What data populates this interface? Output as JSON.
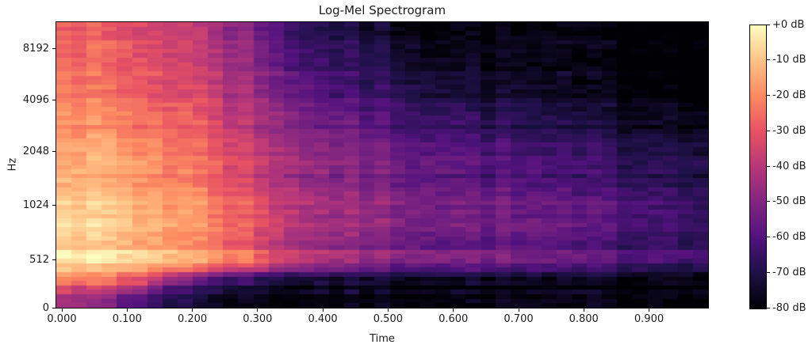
{
  "chart_data": {
    "type": "heatmap",
    "subtype": "log-mel-spectrogram",
    "title": "Log-Mel Spectrogram",
    "xlabel": "Time",
    "ylabel": "Hz",
    "x_tick_labels": [
      "0.000",
      "0.100",
      "0.200",
      "0.300",
      "0.400",
      "0.500",
      "0.600",
      "0.700",
      "0.800",
      "0.900"
    ],
    "y_tick_labels": [
      "0",
      "512",
      "1024",
      "2048",
      "4096",
      "8192"
    ],
    "time_range_s": [
      0.0,
      0.99
    ],
    "freq_range_hz": [
      0,
      11025
    ],
    "colorbar": {
      "tick_labels": [
        "+0 dB",
        "-10 dB",
        "-20 dB",
        "-30 dB",
        "-40 dB",
        "-50 dB",
        "-60 dB",
        "-70 dB",
        "-80 dB"
      ],
      "vmax_db": 0,
      "vmin_db": -80,
      "cmap": "magma",
      "stops": [
        [
          0.0,
          "#000004"
        ],
        [
          0.125,
          "#1d1147"
        ],
        [
          0.25,
          "#51127c"
        ],
        [
          0.375,
          "#822681"
        ],
        [
          0.5,
          "#b73779"
        ],
        [
          0.625,
          "#e75263"
        ],
        [
          0.75,
          "#fc8961"
        ],
        [
          0.875,
          "#fec287"
        ],
        [
          1.0,
          "#fcfdbf"
        ]
      ]
    },
    "values_db": {
      "description": "Downsampled mel-power grid read from the image; rows ordered high frequency (top) to low frequency (bottom), 20 time bins spanning 0-0.99 s.",
      "n_freq_bins": 16,
      "n_time_bins": 20,
      "grid": [
        [
          -28,
          -30,
          -33,
          -36,
          -40,
          -48,
          -57,
          -66,
          -70,
          -73,
          -76,
          -78,
          -79,
          -80,
          -80,
          -80,
          -80,
          -80,
          -80,
          -80
        ],
        [
          -26,
          -28,
          -31,
          -34,
          -38,
          -46,
          -55,
          -63,
          -67,
          -70,
          -73,
          -75,
          -77,
          -78,
          -79,
          -80,
          -80,
          -80,
          -80,
          -80
        ],
        [
          -25,
          -27,
          -29,
          -32,
          -36,
          -44,
          -52,
          -60,
          -64,
          -67,
          -70,
          -72,
          -74,
          -76,
          -77,
          -78,
          -79,
          -80,
          -80,
          -80
        ],
        [
          -23,
          -25,
          -28,
          -31,
          -35,
          -42,
          -50,
          -57,
          -62,
          -65,
          -68,
          -70,
          -72,
          -74,
          -75,
          -77,
          -78,
          -79,
          -80,
          -80
        ],
        [
          -21,
          -23,
          -26,
          -29,
          -33,
          -40,
          -47,
          -54,
          -59,
          -62,
          -65,
          -68,
          -70,
          -72,
          -73,
          -75,
          -76,
          -77,
          -78,
          -79
        ],
        [
          -19,
          -21,
          -24,
          -27,
          -31,
          -38,
          -45,
          -52,
          -56,
          -59,
          -62,
          -64,
          -66,
          -68,
          -70,
          -72,
          -73,
          -75,
          -76,
          -77
        ],
        [
          -17,
          -19,
          -22,
          -25,
          -29,
          -36,
          -43,
          -49,
          -53,
          -56,
          -59,
          -61,
          -63,
          -65,
          -67,
          -69,
          -70,
          -72,
          -73,
          -74
        ],
        [
          -15,
          -17,
          -20,
          -23,
          -27,
          -34,
          -41,
          -47,
          -51,
          -54,
          -56,
          -58,
          -60,
          -62,
          -64,
          -66,
          -67,
          -69,
          -70,
          -71
        ],
        [
          -13,
          -15,
          -18,
          -21,
          -25,
          -32,
          -39,
          -45,
          -49,
          -52,
          -54,
          -56,
          -58,
          -60,
          -61,
          -63,
          -64,
          -66,
          -67,
          -68
        ],
        [
          -11,
          -13,
          -16,
          -19,
          -23,
          -30,
          -37,
          -43,
          -47,
          -50,
          -52,
          -54,
          -56,
          -57,
          -59,
          -61,
          -62,
          -63,
          -65,
          -66
        ],
        [
          -9,
          -11,
          -14,
          -17,
          -21,
          -28,
          -35,
          -42,
          -46,
          -48,
          -51,
          -53,
          -54,
          -56,
          -57,
          -59,
          -60,
          -62,
          -63,
          -64
        ],
        [
          -7,
          -9,
          -12,
          -15,
          -19,
          -27,
          -34,
          -41,
          -45,
          -47,
          -50,
          -52,
          -53,
          -55,
          -56,
          -58,
          -59,
          -61,
          -62,
          -63
        ],
        [
          -5,
          -7,
          -10,
          -13,
          -17,
          -25,
          -33,
          -40,
          -44,
          -47,
          -49,
          -51,
          -53,
          -54,
          -56,
          -57,
          -58,
          -60,
          -61,
          -62
        ],
        [
          -4,
          -6,
          -9,
          -12,
          -16,
          -24,
          -32,
          -40,
          -44,
          -47,
          -50,
          -52,
          -53,
          -55,
          -56,
          -57,
          -59,
          -60,
          -61,
          -62
        ],
        [
          -25,
          -28,
          -35,
          -50,
          -60,
          -68,
          -72,
          -75,
          -76,
          -77,
          -78,
          -78,
          -79,
          -79,
          -80,
          -80,
          -80,
          -80,
          -80,
          -80
        ],
        [
          -45,
          -52,
          -62,
          -70,
          -75,
          -78,
          -80,
          -80,
          -80,
          -80,
          -80,
          -80,
          -80,
          -80,
          -80,
          -80,
          -80,
          -80,
          -80,
          -80
        ]
      ]
    },
    "layout": {
      "grid_on": false,
      "legend": "colorbar-right",
      "y_tick_fracs_from_bottom": [
        0.0,
        0.169,
        0.36,
        0.548,
        0.728,
        0.906
      ],
      "x_tick_start_frac": 0.0085,
      "x_tick_step_frac": 0.1001,
      "texture": {
        "fine_cols": 43,
        "fine_rows": 64,
        "seed": 7,
        "col_jitter_db": 5,
        "row_streak_db": 6,
        "cell_jitter_db": 6
      }
    }
  },
  "colors": {
    "background": "#ffffff",
    "text": "#1c1c1c",
    "spine": "#000000"
  }
}
